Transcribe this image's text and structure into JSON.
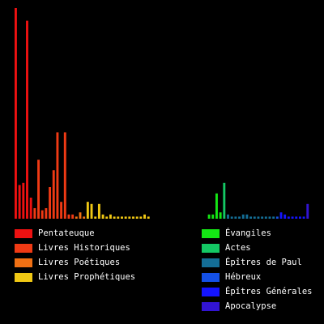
{
  "chart_data": {
    "type": "bar",
    "title": "",
    "xlabel": "",
    "ylabel": "",
    "ylim": [
      0,
      100
    ],
    "grid": false,
    "legend_placement": "bottom",
    "background": "#000000",
    "series": [
      {
        "name": "Pentateuque",
        "color": "#ee1111",
        "values": [
          100,
          16,
          17,
          94,
          10
        ]
      },
      {
        "name": "Livres Historiques",
        "color": "#f03a14",
        "values": [
          5,
          28,
          4,
          5,
          15,
          23,
          41,
          8,
          41,
          2,
          2
        ]
      },
      {
        "name": "Livres Poétiques",
        "color": "#f07014",
        "values": [
          1,
          3,
          1
        ]
      },
      {
        "name": "Livres Prophétiques",
        "color": "#f0c814",
        "values": [
          8,
          7,
          1,
          7,
          2,
          1,
          2,
          1,
          1,
          1,
          1,
          1,
          1,
          1,
          1,
          2,
          1
        ]
      },
      {
        "name": "Évangiles",
        "color": "#14e614",
        "values": [
          2,
          2,
          12,
          3
        ]
      },
      {
        "name": "Actes",
        "color": "#14c864",
        "values": [
          17
        ]
      },
      {
        "name": "Épîtres de Paul",
        "color": "#146e96",
        "values": [
          2,
          1,
          1,
          1,
          2,
          2,
          1,
          1,
          1,
          1,
          1,
          1,
          1
        ]
      },
      {
        "name": "Hébreux",
        "color": "#1450e6",
        "values": [
          1
        ]
      },
      {
        "name": "Épîtres Générales",
        "color": "#1414ff",
        "values": [
          3,
          2,
          1,
          1,
          1,
          1,
          1
        ]
      },
      {
        "name": "Apocalypse",
        "color": "#3214d2",
        "values": [
          7
        ]
      }
    ]
  }
}
